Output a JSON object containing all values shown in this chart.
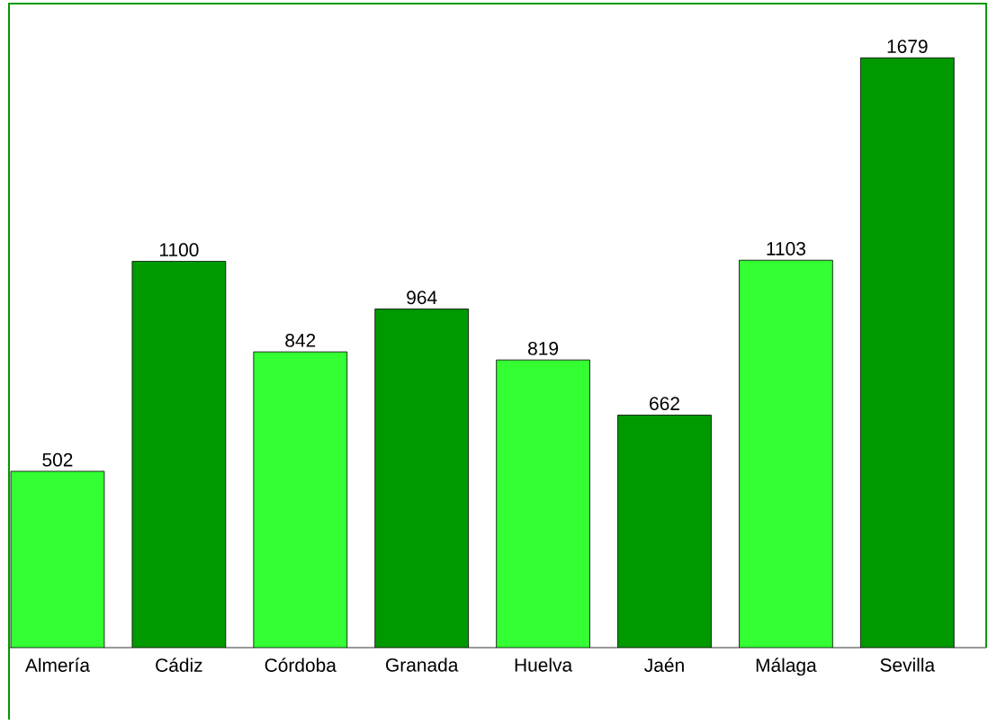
{
  "chart_data": {
    "type": "bar",
    "categories": [
      "Almería",
      "Cádiz",
      "Córdoba",
      "Granada",
      "Huelva",
      "Jaén",
      "Málaga",
      "Sevilla"
    ],
    "values": [
      502,
      1100,
      842,
      964,
      819,
      662,
      1103,
      1679
    ],
    "colors": [
      "#33ff33",
      "#009900",
      "#33ff33",
      "#009900",
      "#33ff33",
      "#009900",
      "#33ff33",
      "#009900"
    ],
    "data_labels": true
  }
}
